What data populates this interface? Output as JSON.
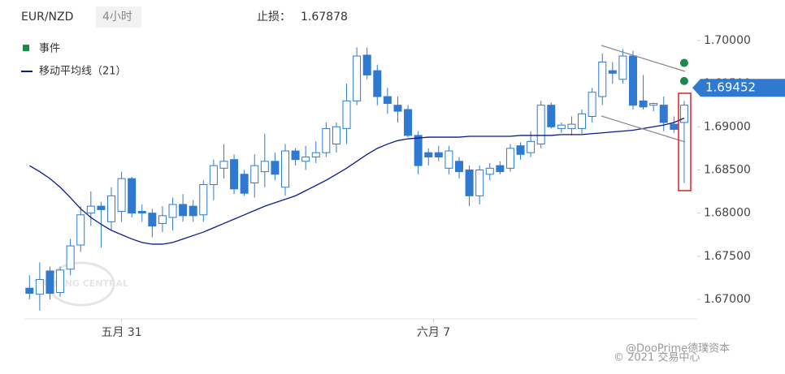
{
  "header": {
    "symbol": "EUR/NZD",
    "interval": "4小时",
    "stop_label": "止损：",
    "stop_value": 1.67878
  },
  "chart_data": {
    "type": "candlestick",
    "legend": {
      "events": "事件",
      "ma": "移动平均线（21）"
    },
    "xticks": [
      {
        "value": 9,
        "label": "五月 31"
      },
      {
        "value": 39.5,
        "label": "六月 7"
      }
    ],
    "xlim": [
      -0.5,
      64.8
    ],
    "ylim": [
      1.66615,
      1.70375
    ],
    "yticks": [
      {
        "value": 1.67,
        "label": "1.67000"
      },
      {
        "value": 1.675,
        "label": "1.67500"
      },
      {
        "value": 1.68,
        "label": "1.68000"
      },
      {
        "value": 1.685,
        "label": "1.68500"
      },
      {
        "value": 1.69,
        "label": "1.69000"
      },
      {
        "value": 1.695,
        "label": "1.69500"
      },
      {
        "value": 1.7,
        "label": "1.70000"
      }
    ],
    "up_color": "#ffffff",
    "down_color": "#2f7ad0",
    "edge_color": "#2f7ad0",
    "open": [
      1.6713,
      1.6706,
      1.6733,
      1.6708,
      1.6735,
      1.6763,
      1.68,
      1.6808,
      1.679,
      1.6802,
      1.684,
      1.6802,
      1.68,
      1.6788,
      1.6795,
      1.681,
      1.6808,
      1.6798,
      1.6833,
      1.6852,
      1.6862,
      1.6845,
      1.6835,
      1.6848,
      1.686,
      1.683,
      1.6872,
      1.686,
      1.6865,
      1.687,
      1.688,
      1.6898,
      1.693,
      1.6983,
      1.6965,
      1.6935,
      1.6925,
      1.692,
      1.689,
      1.687,
      1.687,
      1.6852,
      1.686,
      1.685,
      1.682,
      1.6845,
      1.6855,
      1.6852,
      1.6878,
      1.687,
      1.688,
      1.6925,
      1.6898,
      1.6898,
      1.6898,
      1.6912,
      1.6935,
      1.6965,
      1.6955,
      1.6982,
      1.693,
      1.6925,
      1.6925,
      1.6903,
      1.6905
    ],
    "high": [
      1.6728,
      1.6743,
      1.6738,
      1.6738,
      1.677,
      1.6808,
      1.6825,
      1.6813,
      1.683,
      1.6848,
      1.6842,
      1.681,
      1.6805,
      1.6808,
      1.6818,
      1.6822,
      1.6815,
      1.6838,
      1.6862,
      1.688,
      1.6868,
      1.685,
      1.6868,
      1.6892,
      1.687,
      1.688,
      1.6875,
      1.6878,
      1.6883,
      1.6905,
      1.6905,
      1.695,
      1.6992,
      1.6992,
      1.6972,
      1.6945,
      1.6935,
      1.6925,
      1.6895,
      1.6875,
      1.6878,
      1.6878,
      1.6865,
      1.6855,
      1.6855,
      1.6858,
      1.686,
      1.688,
      1.6882,
      1.6895,
      1.693,
      1.6928,
      1.6905,
      1.6912,
      1.692,
      1.6945,
      1.6985,
      1.6975,
      1.699,
      1.6988,
      1.696,
      1.6928,
      1.6935,
      1.6912,
      1.693
    ],
    "low": [
      1.67,
      1.6687,
      1.67,
      1.6703,
      1.6728,
      1.6755,
      1.6785,
      1.676,
      1.678,
      1.679,
      1.6795,
      1.679,
      1.6772,
      1.6778,
      1.678,
      1.679,
      1.679,
      1.679,
      1.6815,
      1.684,
      1.6822,
      1.682,
      1.6818,
      1.683,
      1.6838,
      1.682,
      1.6855,
      1.685,
      1.6858,
      1.6865,
      1.687,
      1.688,
      1.6925,
      1.6955,
      1.6925,
      1.6915,
      1.6905,
      1.6888,
      1.6845,
      1.6855,
      1.686,
      1.6845,
      1.684,
      1.6808,
      1.681,
      1.6838,
      1.6845,
      1.6848,
      1.6862,
      1.6865,
      1.6875,
      1.6898,
      1.6893,
      1.689,
      1.6892,
      1.6905,
      1.6925,
      1.695,
      1.695,
      1.692,
      1.692,
      1.6918,
      1.6895,
      1.6893,
      1.6835
    ],
    "close": [
      1.6707,
      1.6723,
      1.6707,
      1.6734,
      1.6762,
      1.6798,
      1.6808,
      1.6804,
      1.682,
      1.684,
      1.68,
      1.68,
      1.6785,
      1.6797,
      1.681,
      1.6797,
      1.6797,
      1.6833,
      1.6855,
      1.686,
      1.6828,
      1.6823,
      1.6855,
      1.686,
      1.6845,
      1.6872,
      1.6862,
      1.6865,
      1.687,
      1.6898,
      1.69,
      1.693,
      1.6982,
      1.696,
      1.6935,
      1.6927,
      1.6918,
      1.689,
      1.6855,
      1.6865,
      1.6865,
      1.6872,
      1.6848,
      1.682,
      1.685,
      1.6852,
      1.6848,
      1.6875,
      1.6868,
      1.6883,
      1.6925,
      1.69,
      1.6902,
      1.6903,
      1.6915,
      1.694,
      1.6975,
      1.6962,
      1.6982,
      1.6925,
      1.6923,
      1.6927,
      1.6905,
      1.6897,
      1.6925
    ],
    "ma": {
      "name": "移动平均线（21）",
      "color": "#0a1a8c",
      "values": [
        1.6855,
        1.6848,
        1.684,
        1.683,
        1.6818,
        1.6805,
        1.6795,
        1.6787,
        1.678,
        1.6775,
        1.677,
        1.6766,
        1.6764,
        1.6764,
        1.6766,
        1.677,
        1.6774,
        1.6778,
        1.6783,
        1.6788,
        1.6793,
        1.6798,
        1.6803,
        1.6808,
        1.6812,
        1.6816,
        1.682,
        1.6826,
        1.6832,
        1.6838,
        1.6845,
        1.6852,
        1.686,
        1.6868,
        1.6875,
        1.688,
        1.6884,
        1.6886,
        1.6887,
        1.6888,
        1.6888,
        1.6888,
        1.6888,
        1.6889,
        1.6889,
        1.6889,
        1.6889,
        1.6889,
        1.689,
        1.689,
        1.689,
        1.689,
        1.6891,
        1.6891,
        1.6891,
        1.6892,
        1.6893,
        1.6894,
        1.6895,
        1.6896,
        1.6898,
        1.69,
        1.6902,
        1.6905,
        1.691
      ]
    },
    "events": {
      "color": "#1a8a4a",
      "index": [
        64,
        64
      ],
      "values": [
        1.6974,
        1.6953
      ]
    },
    "last_price": 1.69452,
    "last_price_color": "#2f7ad0",
    "watermarks": [
      "@DooPrime德璞资本",
      "© 2021 交易中心"
    ]
  }
}
